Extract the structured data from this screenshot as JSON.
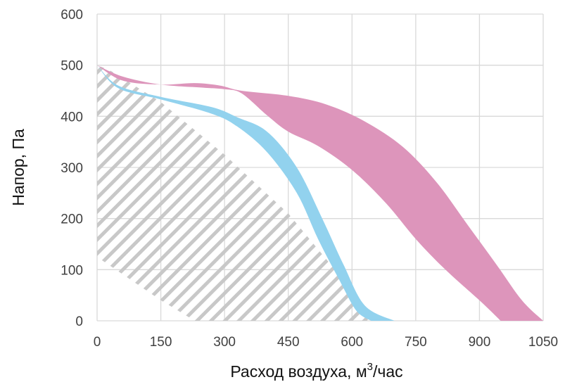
{
  "chart_data": {
    "type": "area",
    "xlabel": "Расход воздуха, м",
    "xlabel_sup": "3",
    "xlabel_suffix": "/час",
    "ylabel": "Напор, Па",
    "xlim": [
      0,
      1050
    ],
    "ylim": [
      0,
      600
    ],
    "xticks": [
      0,
      150,
      300,
      450,
      600,
      750,
      900,
      1050
    ],
    "yticks": [
      0,
      100,
      200,
      300,
      400,
      500,
      600
    ],
    "grid": true,
    "colors": {
      "blue": "#92d2ee",
      "pink": "#dd95bb",
      "overlap": "#817fb7",
      "hatch": "#c8c8c8",
      "grid": "#d9d9d9"
    },
    "bands": [
      {
        "color_key": "blue",
        "upper": [
          [
            0,
            500
          ],
          [
            50,
            460
          ],
          [
            150,
            438
          ],
          [
            270,
            418
          ],
          [
            330,
            398
          ],
          [
            400,
            370
          ],
          [
            470,
            300
          ],
          [
            530,
            200
          ],
          [
            580,
            110
          ],
          [
            630,
            30
          ],
          [
            700,
            0
          ]
        ],
        "lower": [
          [
            0,
            500
          ],
          [
            50,
            455
          ],
          [
            150,
            433
          ],
          [
            270,
            405
          ],
          [
            330,
            380
          ],
          [
            400,
            330
          ],
          [
            470,
            250
          ],
          [
            520,
            160
          ],
          [
            570,
            80
          ],
          [
            610,
            20
          ],
          [
            645,
            0
          ]
        ]
      },
      {
        "color_key": "pink",
        "upper": [
          [
            0,
            500
          ],
          [
            60,
            470
          ],
          [
            150,
            462
          ],
          [
            230,
            465
          ],
          [
            290,
            460
          ],
          [
            340,
            450
          ],
          [
            450,
            440
          ],
          [
            540,
            423
          ],
          [
            630,
            390
          ],
          [
            720,
            340
          ],
          [
            800,
            270
          ],
          [
            870,
            190
          ],
          [
            940,
            110
          ],
          [
            1000,
            40
          ],
          [
            1050,
            0
          ]
        ],
        "lower": [
          [
            0,
            500
          ],
          [
            60,
            478
          ],
          [
            150,
            462
          ],
          [
            250,
            456
          ],
          [
            300,
            453
          ],
          [
            340,
            445
          ],
          [
            400,
            402
          ],
          [
            450,
            370
          ],
          [
            520,
            342
          ],
          [
            600,
            295
          ],
          [
            680,
            230
          ],
          [
            750,
            160
          ],
          [
            820,
            100
          ],
          [
            900,
            40
          ],
          [
            950,
            0
          ]
        ]
      }
    ],
    "hatch_region": [
      [
        0,
        500
      ],
      [
        30,
        490
      ],
      [
        150,
        428
      ],
      [
        300,
        325
      ],
      [
        450,
        210
      ],
      [
        560,
        100
      ],
      [
        630,
        10
      ],
      [
        640,
        0
      ],
      [
        0,
        0
      ]
    ],
    "hatch_lower_edge": [
      [
        0,
        125
      ],
      [
        150,
        40
      ],
      [
        230,
        0
      ]
    ]
  }
}
